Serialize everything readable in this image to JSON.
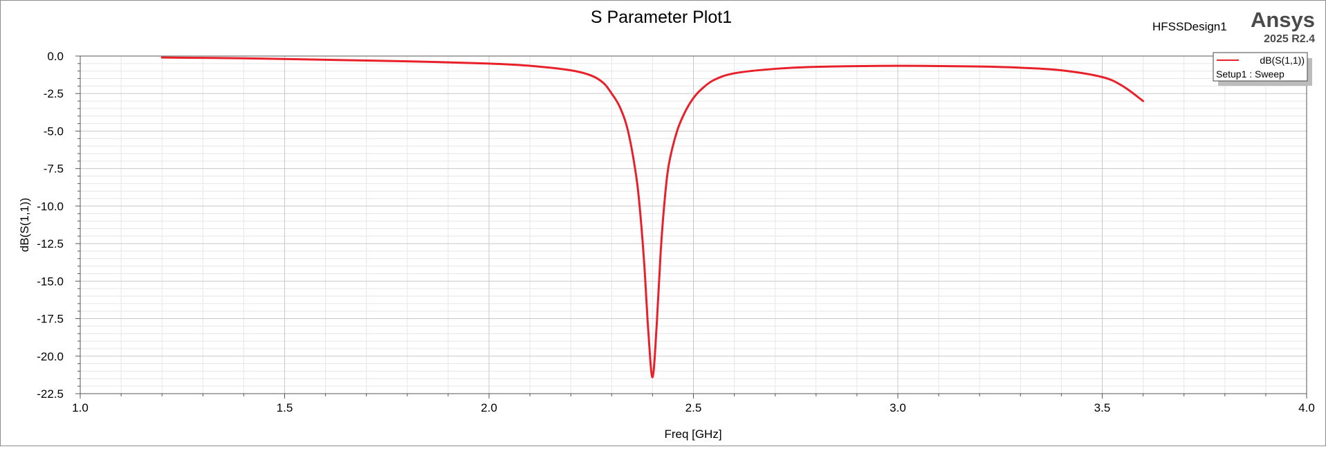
{
  "header": {
    "design_name": "HFSSDesign1",
    "brand": "Ansys",
    "version": "2025 R2.4"
  },
  "legend": {
    "series_label": "dB(S(1,1))",
    "setup_label": "Setup1 : Sweep",
    "placement": "top-right"
  },
  "colors": {
    "series": "#e8202a",
    "major_grid": "#c8c8c8",
    "minor_grid": "#e6e6e6",
    "axis": "#555555"
  },
  "chart_data": {
    "type": "line",
    "title": "S Parameter Plot1",
    "xlabel": "Freq [GHz]",
    "ylabel": "dB(S(1,1))",
    "xlim": [
      1.0,
      4.0
    ],
    "ylim": [
      -22.5,
      0.0
    ],
    "grid": true,
    "x_ticks": [
      "1.0",
      "1.5",
      "2.0",
      "2.5",
      "3.0",
      "3.5",
      "4.0"
    ],
    "y_ticks": [
      "0.0",
      "-2.5",
      "-5.0",
      "-7.5",
      "-10.0",
      "-12.5",
      "-15.0",
      "-17.5",
      "-20.0",
      "-22.5"
    ],
    "series": [
      {
        "name": "dB(S(1,1))",
        "x": [
          1.2,
          1.4,
          1.6,
          1.8,
          2.0,
          2.1,
          2.2,
          2.25,
          2.28,
          2.3,
          2.32,
          2.34,
          2.36,
          2.37,
          2.38,
          2.39,
          2.4,
          2.41,
          2.42,
          2.43,
          2.44,
          2.46,
          2.48,
          2.5,
          2.52,
          2.55,
          2.6,
          2.7,
          2.8,
          3.0,
          3.2,
          3.3,
          3.4,
          3.5,
          3.55,
          3.6
        ],
        "y": [
          -0.1,
          -0.15,
          -0.25,
          -0.35,
          -0.5,
          -0.65,
          -0.95,
          -1.3,
          -1.8,
          -2.5,
          -3.4,
          -5.0,
          -8.0,
          -10.5,
          -14.0,
          -18.5,
          -21.4,
          -18.0,
          -13.0,
          -9.5,
          -7.2,
          -5.0,
          -3.7,
          -2.8,
          -2.2,
          -1.6,
          -1.15,
          -0.85,
          -0.72,
          -0.65,
          -0.7,
          -0.78,
          -0.95,
          -1.4,
          -2.0,
          -3.0
        ]
      }
    ]
  }
}
